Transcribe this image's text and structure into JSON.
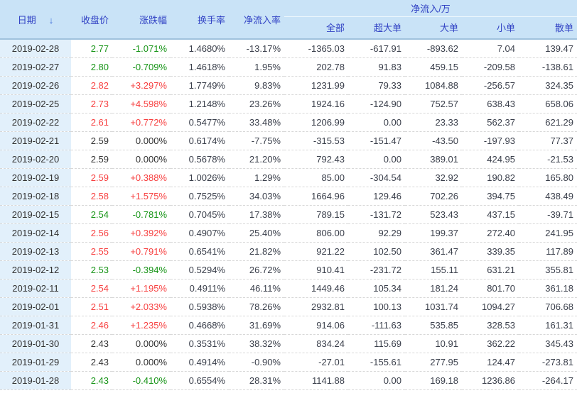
{
  "colors": {
    "header_bg": "#c9e3f7",
    "header_text": "#3142c4",
    "date_col_bg": "#e2f0fb",
    "up": "#f74040",
    "down": "#169416",
    "flat": "#333333",
    "text": "#3a3f4b",
    "header_border": "#9fc2dd",
    "group_divider": "#eef7fd",
    "row_divider": "#d8d8d8",
    "sort_arrow": "#3a6bd8"
  },
  "table": {
    "headers": {
      "date": "日期",
      "sort_icon": "↓",
      "close": "收盘价",
      "change": "涨跌幅",
      "turnover": "换手率",
      "inflow_rate": "净流入率",
      "inflow_group": "净流入/万",
      "sub": {
        "all": "全部",
        "super_large": "超大单",
        "large": "大单",
        "small": "小单",
        "retail": "散单"
      }
    },
    "rows": [
      {
        "date": "2019-02-28",
        "close": "2.77",
        "change": "-1.071%",
        "trend": "down",
        "turnover": "1.4680%",
        "inflow_rate": "-13.17%",
        "all": "-1365.03",
        "super_large": "-617.91",
        "large": "-893.62",
        "small": "7.04",
        "retail": "139.47"
      },
      {
        "date": "2019-02-27",
        "close": "2.80",
        "change": "-0.709%",
        "trend": "down",
        "turnover": "1.4618%",
        "inflow_rate": "1.95%",
        "all": "202.78",
        "super_large": "91.83",
        "large": "459.15",
        "small": "-209.58",
        "retail": "-138.61"
      },
      {
        "date": "2019-02-26",
        "close": "2.82",
        "change": "+3.297%",
        "trend": "up",
        "turnover": "1.7749%",
        "inflow_rate": "9.83%",
        "all": "1231.99",
        "super_large": "79.33",
        "large": "1084.88",
        "small": "-256.57",
        "retail": "324.35"
      },
      {
        "date": "2019-02-25",
        "close": "2.73",
        "change": "+4.598%",
        "trend": "up",
        "turnover": "1.2148%",
        "inflow_rate": "23.26%",
        "all": "1924.16",
        "super_large": "-124.90",
        "large": "752.57",
        "small": "638.43",
        "retail": "658.06"
      },
      {
        "date": "2019-02-22",
        "close": "2.61",
        "change": "+0.772%",
        "trend": "up",
        "turnover": "0.5477%",
        "inflow_rate": "33.48%",
        "all": "1206.99",
        "super_large": "0.00",
        "large": "23.33",
        "small": "562.37",
        "retail": "621.29"
      },
      {
        "date": "2019-02-21",
        "close": "2.59",
        "change": "0.000%",
        "trend": "flat",
        "turnover": "0.6174%",
        "inflow_rate": "-7.75%",
        "all": "-315.53",
        "super_large": "-151.47",
        "large": "-43.50",
        "small": "-197.93",
        "retail": "77.37"
      },
      {
        "date": "2019-02-20",
        "close": "2.59",
        "change": "0.000%",
        "trend": "flat",
        "turnover": "0.5678%",
        "inflow_rate": "21.20%",
        "all": "792.43",
        "super_large": "0.00",
        "large": "389.01",
        "small": "424.95",
        "retail": "-21.53"
      },
      {
        "date": "2019-02-19",
        "close": "2.59",
        "change": "+0.388%",
        "trend": "up",
        "turnover": "1.0026%",
        "inflow_rate": "1.29%",
        "all": "85.00",
        "super_large": "-304.54",
        "large": "32.92",
        "small": "190.82",
        "retail": "165.80"
      },
      {
        "date": "2019-02-18",
        "close": "2.58",
        "change": "+1.575%",
        "trend": "up",
        "turnover": "0.7525%",
        "inflow_rate": "34.03%",
        "all": "1664.96",
        "super_large": "129.46",
        "large": "702.26",
        "small": "394.75",
        "retail": "438.49"
      },
      {
        "date": "2019-02-15",
        "close": "2.54",
        "change": "-0.781%",
        "trend": "down",
        "turnover": "0.7045%",
        "inflow_rate": "17.38%",
        "all": "789.15",
        "super_large": "-131.72",
        "large": "523.43",
        "small": "437.15",
        "retail": "-39.71"
      },
      {
        "date": "2019-02-14",
        "close": "2.56",
        "change": "+0.392%",
        "trend": "up",
        "turnover": "0.4907%",
        "inflow_rate": "25.40%",
        "all": "806.00",
        "super_large": "92.29",
        "large": "199.37",
        "small": "272.40",
        "retail": "241.95"
      },
      {
        "date": "2019-02-13",
        "close": "2.55",
        "change": "+0.791%",
        "trend": "up",
        "turnover": "0.6541%",
        "inflow_rate": "21.82%",
        "all": "921.22",
        "super_large": "102.50",
        "large": "361.47",
        "small": "339.35",
        "retail": "117.89"
      },
      {
        "date": "2019-02-12",
        "close": "2.53",
        "change": "-0.394%",
        "trend": "down",
        "turnover": "0.5294%",
        "inflow_rate": "26.72%",
        "all": "910.41",
        "super_large": "-231.72",
        "large": "155.11",
        "small": "631.21",
        "retail": "355.81"
      },
      {
        "date": "2019-02-11",
        "close": "2.54",
        "change": "+1.195%",
        "trend": "up",
        "turnover": "0.4911%",
        "inflow_rate": "46.11%",
        "all": "1449.46",
        "super_large": "105.34",
        "large": "181.24",
        "small": "801.70",
        "retail": "361.18"
      },
      {
        "date": "2019-02-01",
        "close": "2.51",
        "change": "+2.033%",
        "trend": "up",
        "turnover": "0.5938%",
        "inflow_rate": "78.26%",
        "all": "2932.81",
        "super_large": "100.13",
        "large": "1031.74",
        "small": "1094.27",
        "retail": "706.68"
      },
      {
        "date": "2019-01-31",
        "close": "2.46",
        "change": "+1.235%",
        "trend": "up",
        "turnover": "0.4668%",
        "inflow_rate": "31.69%",
        "all": "914.06",
        "super_large": "-111.63",
        "large": "535.85",
        "small": "328.53",
        "retail": "161.31"
      },
      {
        "date": "2019-01-30",
        "close": "2.43",
        "change": "0.000%",
        "trend": "flat",
        "turnover": "0.3531%",
        "inflow_rate": "38.32%",
        "all": "834.24",
        "super_large": "115.69",
        "large": "10.91",
        "small": "362.22",
        "retail": "345.43"
      },
      {
        "date": "2019-01-29",
        "close": "2.43",
        "change": "0.000%",
        "trend": "flat",
        "turnover": "0.4914%",
        "inflow_rate": "-0.90%",
        "all": "-27.01",
        "super_large": "-155.61",
        "large": "277.95",
        "small": "124.47",
        "retail": "-273.81"
      },
      {
        "date": "2019-01-28",
        "close": "2.43",
        "change": "-0.410%",
        "trend": "down",
        "turnover": "0.6554%",
        "inflow_rate": "28.31%",
        "all": "1141.88",
        "super_large": "0.00",
        "large": "169.18",
        "small": "1236.86",
        "retail": "-264.17"
      }
    ]
  }
}
